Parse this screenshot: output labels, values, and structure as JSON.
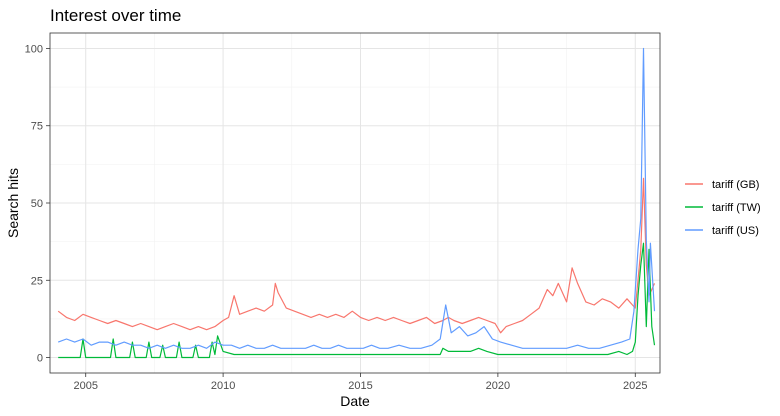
{
  "chart_data": {
    "type": "line",
    "title": "Interest over time",
    "xlabel": "Date",
    "ylabel": "Search hits",
    "xlim": [
      2003.7,
      2025.9
    ],
    "ylim": [
      -5,
      105
    ],
    "xticks": [
      2005,
      2010,
      2015,
      2020,
      2025
    ],
    "yticks": [
      0,
      25,
      50,
      75,
      100
    ],
    "grid": true,
    "legend_position": "right",
    "series": [
      {
        "name": "tariff (GB)",
        "color": "#F8766D",
        "points": [
          [
            2004.0,
            15
          ],
          [
            2004.3,
            13
          ],
          [
            2004.6,
            12
          ],
          [
            2004.9,
            14
          ],
          [
            2005.2,
            13
          ],
          [
            2005.5,
            12
          ],
          [
            2005.8,
            11
          ],
          [
            2006.1,
            12
          ],
          [
            2006.4,
            11
          ],
          [
            2006.7,
            10
          ],
          [
            2007.0,
            11
          ],
          [
            2007.3,
            10
          ],
          [
            2007.6,
            9
          ],
          [
            2007.9,
            10
          ],
          [
            2008.2,
            11
          ],
          [
            2008.5,
            10
          ],
          [
            2008.8,
            9
          ],
          [
            2009.1,
            10
          ],
          [
            2009.4,
            9
          ],
          [
            2009.7,
            10
          ],
          [
            2010.0,
            12
          ],
          [
            2010.2,
            13
          ],
          [
            2010.4,
            20
          ],
          [
            2010.6,
            14
          ],
          [
            2010.9,
            15
          ],
          [
            2011.2,
            16
          ],
          [
            2011.5,
            15
          ],
          [
            2011.8,
            17
          ],
          [
            2011.9,
            24
          ],
          [
            2012.0,
            21
          ],
          [
            2012.3,
            16
          ],
          [
            2012.6,
            15
          ],
          [
            2012.9,
            14
          ],
          [
            2013.2,
            13
          ],
          [
            2013.5,
            14
          ],
          [
            2013.8,
            13
          ],
          [
            2014.1,
            14
          ],
          [
            2014.4,
            13
          ],
          [
            2014.7,
            15
          ],
          [
            2015.0,
            13
          ],
          [
            2015.3,
            12
          ],
          [
            2015.6,
            13
          ],
          [
            2015.9,
            12
          ],
          [
            2016.2,
            13
          ],
          [
            2016.5,
            12
          ],
          [
            2016.8,
            11
          ],
          [
            2017.1,
            12
          ],
          [
            2017.4,
            13
          ],
          [
            2017.7,
            11
          ],
          [
            2018.0,
            12
          ],
          [
            2018.2,
            13
          ],
          [
            2018.4,
            12
          ],
          [
            2018.7,
            11
          ],
          [
            2019.0,
            12
          ],
          [
            2019.3,
            13
          ],
          [
            2019.6,
            12
          ],
          [
            2019.9,
            11
          ],
          [
            2020.1,
            8
          ],
          [
            2020.3,
            10
          ],
          [
            2020.6,
            11
          ],
          [
            2020.9,
            12
          ],
          [
            2021.2,
            14
          ],
          [
            2021.5,
            16
          ],
          [
            2021.8,
            22
          ],
          [
            2022.0,
            20
          ],
          [
            2022.2,
            24
          ],
          [
            2022.5,
            18
          ],
          [
            2022.7,
            29
          ],
          [
            2022.9,
            24
          ],
          [
            2023.2,
            18
          ],
          [
            2023.5,
            17
          ],
          [
            2023.8,
            19
          ],
          [
            2024.1,
            18
          ],
          [
            2024.4,
            16
          ],
          [
            2024.7,
            19
          ],
          [
            2024.9,
            17
          ],
          [
            2025.0,
            16
          ],
          [
            2025.1,
            25
          ],
          [
            2025.2,
            35
          ],
          [
            2025.3,
            58
          ],
          [
            2025.4,
            30
          ],
          [
            2025.5,
            20
          ],
          [
            2025.6,
            22
          ],
          [
            2025.7,
            24
          ]
        ]
      },
      {
        "name": "tariff (TW)",
        "color": "#00BA38",
        "points": [
          [
            2004.0,
            0
          ],
          [
            2004.4,
            0
          ],
          [
            2004.8,
            0
          ],
          [
            2004.9,
            6
          ],
          [
            2005.0,
            0
          ],
          [
            2005.5,
            0
          ],
          [
            2005.9,
            0
          ],
          [
            2006.0,
            6
          ],
          [
            2006.1,
            0
          ],
          [
            2006.6,
            0
          ],
          [
            2006.7,
            5
          ],
          [
            2006.8,
            0
          ],
          [
            2007.2,
            0
          ],
          [
            2007.3,
            5
          ],
          [
            2007.4,
            0
          ],
          [
            2007.7,
            0
          ],
          [
            2007.8,
            4
          ],
          [
            2007.9,
            0
          ],
          [
            2008.3,
            0
          ],
          [
            2008.4,
            5
          ],
          [
            2008.5,
            0
          ],
          [
            2008.9,
            0
          ],
          [
            2009.0,
            4
          ],
          [
            2009.1,
            0
          ],
          [
            2009.5,
            0
          ],
          [
            2009.6,
            5
          ],
          [
            2009.7,
            1
          ],
          [
            2009.8,
            7
          ],
          [
            2010.0,
            2
          ],
          [
            2010.4,
            1
          ],
          [
            2010.8,
            1
          ],
          [
            2011.2,
            1
          ],
          [
            2011.6,
            1
          ],
          [
            2012.0,
            1
          ],
          [
            2013.0,
            1
          ],
          [
            2014.0,
            1
          ],
          [
            2015.0,
            1
          ],
          [
            2016.0,
            1
          ],
          [
            2017.0,
            1
          ],
          [
            2017.5,
            1
          ],
          [
            2017.9,
            1
          ],
          [
            2018.0,
            3
          ],
          [
            2018.2,
            2
          ],
          [
            2018.5,
            2
          ],
          [
            2019.0,
            2
          ],
          [
            2019.3,
            3
          ],
          [
            2019.6,
            2
          ],
          [
            2020.0,
            1
          ],
          [
            2021.0,
            1
          ],
          [
            2022.0,
            1
          ],
          [
            2023.0,
            1
          ],
          [
            2023.8,
            1
          ],
          [
            2024.0,
            1
          ],
          [
            2024.4,
            2
          ],
          [
            2024.7,
            1
          ],
          [
            2024.9,
            2
          ],
          [
            2025.0,
            5
          ],
          [
            2025.1,
            20
          ],
          [
            2025.2,
            30
          ],
          [
            2025.3,
            37
          ],
          [
            2025.4,
            10
          ],
          [
            2025.5,
            35
          ],
          [
            2025.6,
            10
          ],
          [
            2025.7,
            4
          ]
        ]
      },
      {
        "name": "tariff (US)",
        "color": "#619CFF",
        "points": [
          [
            2004.0,
            5
          ],
          [
            2004.3,
            6
          ],
          [
            2004.6,
            5
          ],
          [
            2004.9,
            6
          ],
          [
            2005.2,
            4
          ],
          [
            2005.5,
            5
          ],
          [
            2005.8,
            5
          ],
          [
            2006.1,
            4
          ],
          [
            2006.4,
            5
          ],
          [
            2006.7,
            4
          ],
          [
            2007.0,
            4
          ],
          [
            2007.3,
            3
          ],
          [
            2007.6,
            4
          ],
          [
            2007.9,
            3
          ],
          [
            2008.2,
            4
          ],
          [
            2008.5,
            3
          ],
          [
            2008.8,
            3
          ],
          [
            2009.1,
            4
          ],
          [
            2009.4,
            3
          ],
          [
            2009.7,
            5
          ],
          [
            2010.0,
            4
          ],
          [
            2010.3,
            4
          ],
          [
            2010.6,
            3
          ],
          [
            2010.9,
            4
          ],
          [
            2011.2,
            3
          ],
          [
            2011.5,
            3
          ],
          [
            2011.8,
            4
          ],
          [
            2012.1,
            3
          ],
          [
            2012.4,
            3
          ],
          [
            2012.7,
            3
          ],
          [
            2013.0,
            3
          ],
          [
            2013.3,
            4
          ],
          [
            2013.6,
            3
          ],
          [
            2013.9,
            3
          ],
          [
            2014.2,
            4
          ],
          [
            2014.5,
            3
          ],
          [
            2014.8,
            3
          ],
          [
            2015.1,
            3
          ],
          [
            2015.4,
            4
          ],
          [
            2015.7,
            3
          ],
          [
            2016.0,
            3
          ],
          [
            2016.4,
            4
          ],
          [
            2016.8,
            3
          ],
          [
            2017.2,
            3
          ],
          [
            2017.6,
            4
          ],
          [
            2017.9,
            6
          ],
          [
            2018.1,
            17
          ],
          [
            2018.3,
            8
          ],
          [
            2018.6,
            10
          ],
          [
            2018.9,
            7
          ],
          [
            2019.2,
            8
          ],
          [
            2019.5,
            10
          ],
          [
            2019.8,
            6
          ],
          [
            2020.1,
            5
          ],
          [
            2020.5,
            4
          ],
          [
            2020.9,
            3
          ],
          [
            2021.3,
            3
          ],
          [
            2021.7,
            3
          ],
          [
            2022.1,
            3
          ],
          [
            2022.5,
            3
          ],
          [
            2022.9,
            4
          ],
          [
            2023.3,
            3
          ],
          [
            2023.7,
            3
          ],
          [
            2024.1,
            4
          ],
          [
            2024.5,
            5
          ],
          [
            2024.8,
            6
          ],
          [
            2024.95,
            15
          ],
          [
            2025.1,
            35
          ],
          [
            2025.2,
            45
          ],
          [
            2025.3,
            100
          ],
          [
            2025.4,
            38
          ],
          [
            2025.5,
            18
          ],
          [
            2025.55,
            37
          ],
          [
            2025.7,
            15
          ]
        ]
      }
    ]
  }
}
